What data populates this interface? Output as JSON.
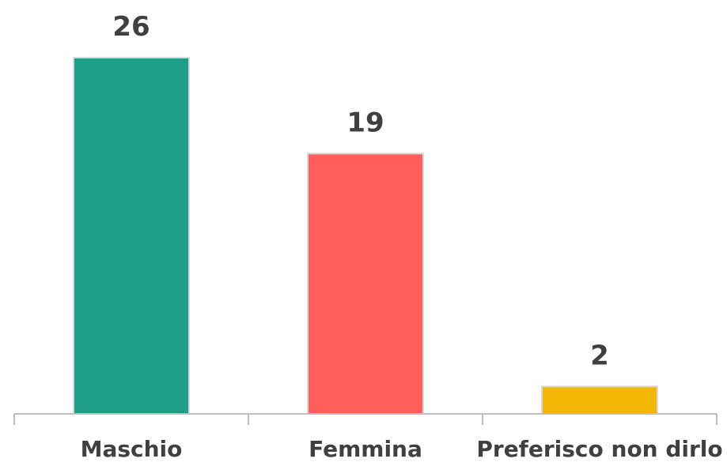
{
  "chart_data": {
    "type": "bar",
    "categories": [
      "Maschio",
      "Femmina",
      "Preferisco non dirlo"
    ],
    "values": [
      26,
      19,
      2
    ],
    "colors": [
      "#1f9e87",
      "#ff5e5b",
      "#f2b705"
    ],
    "data_labels": [
      "26",
      "19",
      "2"
    ],
    "title": "",
    "xlabel": "",
    "ylabel": "",
    "ylim": [
      0,
      26
    ],
    "grid": false,
    "legend": "none"
  }
}
